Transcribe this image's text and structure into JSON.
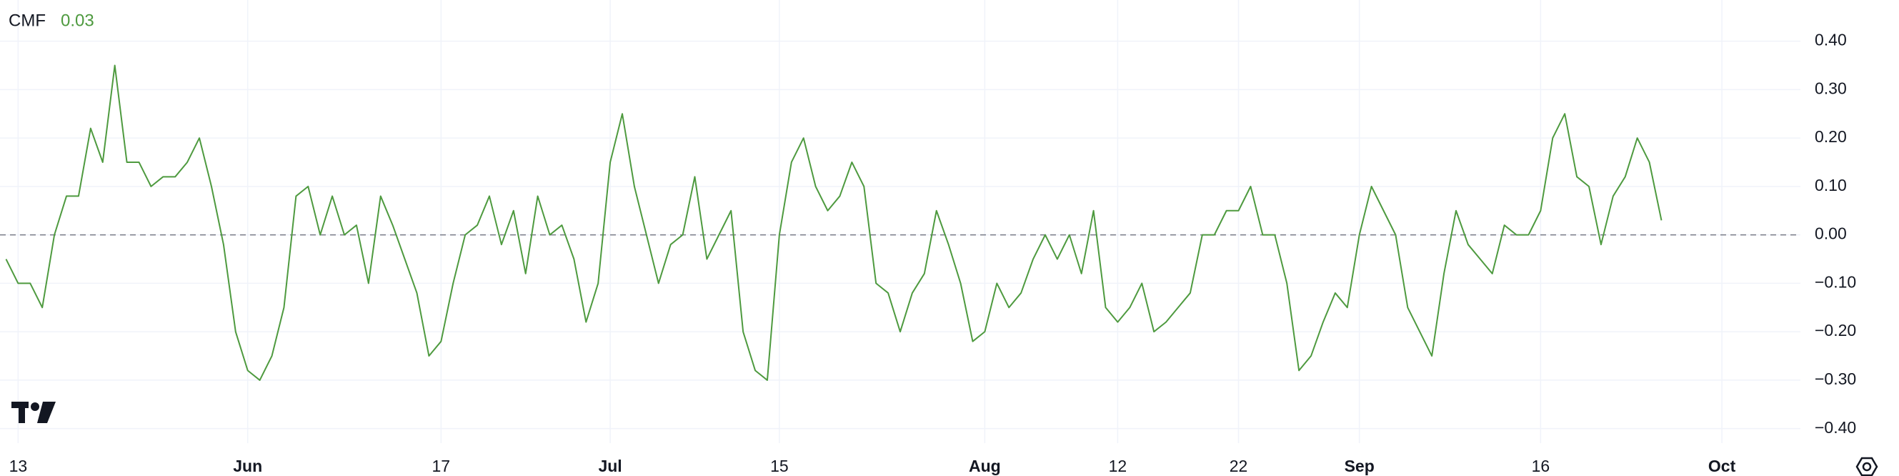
{
  "chart_data": {
    "type": "line",
    "title": "CMF",
    "current_value": "0.03",
    "categories": [
      null,
      "13",
      null,
      null,
      null,
      null,
      null,
      null,
      null,
      null,
      null,
      null,
      null,
      null,
      null,
      null,
      null,
      null,
      null,
      null,
      "Jun",
      null,
      null,
      null,
      null,
      null,
      null,
      null,
      null,
      null,
      null,
      null,
      null,
      null,
      null,
      null,
      "17",
      null,
      null,
      null,
      null,
      null,
      null,
      null,
      null,
      null,
      null,
      null,
      null,
      null,
      "Jul",
      null,
      null,
      null,
      null,
      null,
      null,
      null,
      null,
      null,
      null,
      null,
      null,
      null,
      "15",
      null,
      null,
      null,
      null,
      null,
      null,
      null,
      null,
      null,
      null,
      null,
      null,
      null,
      null,
      null,
      null,
      "Aug",
      null,
      null,
      null,
      null,
      null,
      null,
      null,
      null,
      null,
      null,
      "12",
      null,
      null,
      null,
      null,
      null,
      null,
      null,
      null,
      null,
      "22",
      null,
      null,
      null,
      null,
      null,
      null,
      null,
      null,
      null,
      "Sep",
      null,
      null,
      null,
      null,
      null,
      null,
      null,
      null,
      null,
      null,
      null,
      null,
      null,
      null,
      "16",
      null,
      null,
      null,
      null,
      null,
      null,
      null,
      null,
      null,
      null,
      null,
      null,
      null,
      null,
      "Oct",
      null,
      null,
      null,
      null,
      null,
      null
    ],
    "series": [
      {
        "name": "CMF",
        "color": "#4e9a3f",
        "values": [
          -0.05,
          -0.1,
          -0.1,
          -0.15,
          0.0,
          0.08,
          0.08,
          0.22,
          0.15,
          0.35,
          0.15,
          0.15,
          0.1,
          0.12,
          0.12,
          0.15,
          0.2,
          0.1,
          -0.02,
          -0.2,
          -0.28,
          -0.3,
          -0.25,
          -0.15,
          0.08,
          0.1,
          0.0,
          0.08,
          0.0,
          0.02,
          -0.1,
          0.08,
          0.02,
          -0.05,
          -0.12,
          -0.25,
          -0.22,
          -0.1,
          0.0,
          0.02,
          0.08,
          -0.02,
          0.05,
          -0.08,
          0.08,
          0.0,
          0.02,
          -0.05,
          -0.18,
          -0.1,
          0.15,
          0.25,
          0.1,
          0.0,
          -0.1,
          -0.02,
          0.0,
          0.12,
          -0.05,
          0.0,
          0.05,
          -0.2,
          -0.28,
          -0.3,
          0.0,
          0.15,
          0.2,
          0.1,
          0.05,
          0.08,
          0.15,
          0.1,
          -0.1,
          -0.12,
          -0.2,
          -0.12,
          -0.08,
          0.05,
          -0.02,
          -0.1,
          -0.22,
          -0.2,
          -0.1,
          -0.15,
          -0.12,
          -0.05,
          0.0,
          -0.05,
          0.0,
          -0.08,
          0.05,
          -0.15,
          -0.18,
          -0.15,
          -0.1,
          -0.2,
          -0.18,
          -0.15,
          -0.12,
          0.0,
          0.0,
          0.05,
          0.05,
          0.1,
          0.0,
          0.0,
          -0.1,
          -0.28,
          -0.25,
          -0.18,
          -0.12,
          -0.15,
          0.0,
          0.1,
          0.05,
          0.0,
          -0.15,
          -0.2,
          -0.25,
          -0.08,
          0.05,
          -0.02,
          -0.05,
          -0.08,
          0.02,
          0.0,
          0.0,
          0.05,
          0.2,
          0.25,
          0.12,
          0.1,
          -0.02,
          0.08,
          0.12,
          0.2,
          0.15,
          0.03,
          null,
          null,
          null,
          null,
          null,
          null,
          null,
          null,
          null,
          null,
          null
        ]
      }
    ],
    "ylim": [
      -0.43,
      0.485
    ],
    "yticks": [
      {
        "value": 0.4,
        "label": "0.40"
      },
      {
        "value": 0.3,
        "label": "0.30"
      },
      {
        "value": 0.2,
        "label": "0.20"
      },
      {
        "value": 0.1,
        "label": "0.10"
      },
      {
        "value": 0,
        "label": "0.00"
      },
      {
        "value": -0.1,
        "label": "−0.10"
      },
      {
        "value": -0.2,
        "label": "−0.20"
      },
      {
        "value": -0.3,
        "label": "−0.30"
      },
      {
        "value": -0.4,
        "label": "−0.40"
      }
    ],
    "grid": true,
    "reference_line": {
      "value": 0,
      "style": "dashed"
    }
  }
}
